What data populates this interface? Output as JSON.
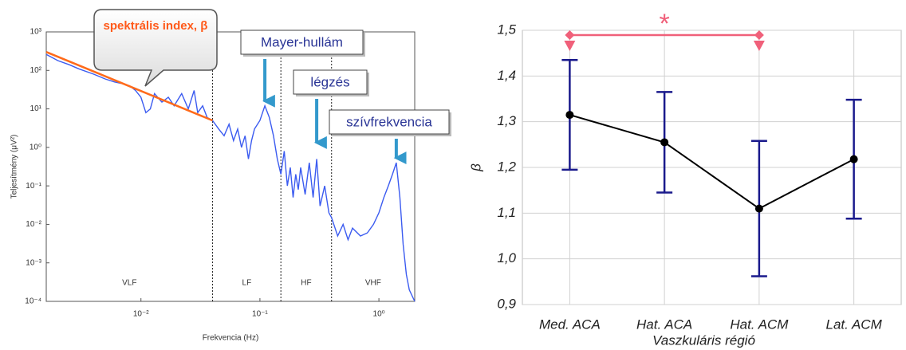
{
  "chart_data": [
    {
      "type": "line",
      "xlabel": "Frekvencia (Hz)",
      "ylabel": "Teljesítmény (μV²)",
      "xscale": "log",
      "yscale": "log",
      "xlim": [
        0.0016,
        2
      ],
      "ylim": [
        0.0001,
        1000
      ],
      "xticks": [
        {
          "value": 0.01,
          "label": "10⁻²"
        },
        {
          "value": 0.1,
          "label": "10⁻¹"
        },
        {
          "value": 1,
          "label": "10⁰"
        }
      ],
      "yticks": [
        {
          "value": 0.0001,
          "label": "10⁻⁴"
        },
        {
          "value": 0.001,
          "label": "10⁻³"
        },
        {
          "value": 0.01,
          "label": "10⁻²"
        },
        {
          "value": 0.1,
          "label": "10⁻¹"
        },
        {
          "value": 1,
          "label": "10⁰"
        },
        {
          "value": 10,
          "label": "10¹"
        },
        {
          "value": 100,
          "label": "10²"
        },
        {
          "value": 1000,
          "label": "10³"
        }
      ],
      "series": [
        {
          "color": "#3b5bf0",
          "x": [
            0.0016,
            0.002,
            0.0025,
            0.003,
            0.004,
            0.005,
            0.006,
            0.007,
            0.008,
            0.009,
            0.01,
            0.011,
            0.012,
            0.013,
            0.015,
            0.017,
            0.019,
            0.022,
            0.025,
            0.028,
            0.03,
            0.033,
            0.036,
            0.04,
            0.045,
            0.05,
            0.055,
            0.06,
            0.065,
            0.07,
            0.075,
            0.08,
            0.085,
            0.09,
            0.1,
            0.11,
            0.12,
            0.13,
            0.14,
            0.15,
            0.16,
            0.17,
            0.18,
            0.19,
            0.2,
            0.21,
            0.22,
            0.24,
            0.26,
            0.28,
            0.3,
            0.32,
            0.35,
            0.38,
            0.4,
            0.45,
            0.5,
            0.55,
            0.6,
            0.7,
            0.8,
            0.9,
            1.0,
            1.1,
            1.2,
            1.3,
            1.4,
            1.5,
            1.6,
            1.7,
            1.8,
            2.0
          ],
          "values": [
            260,
            180,
            140,
            110,
            80,
            60,
            50,
            45,
            40,
            30,
            20,
            8,
            10,
            25,
            15,
            20,
            12,
            25,
            10,
            30,
            8,
            12,
            6,
            5,
            3,
            2,
            4,
            1.5,
            3,
            1,
            2,
            0.5,
            1.5,
            3,
            5,
            12,
            6,
            2,
            0.5,
            0.2,
            0.8,
            0.1,
            0.3,
            0.05,
            0.2,
            0.08,
            0.3,
            0.06,
            0.4,
            0.05,
            0.5,
            0.03,
            0.1,
            0.02,
            0.015,
            0.005,
            0.01,
            0.004,
            0.008,
            0.005,
            0.006,
            0.01,
            0.02,
            0.05,
            0.1,
            0.2,
            0.4,
            0.05,
            0.003,
            0.0005,
            0.0002,
            0.0001
          ]
        },
        {
          "color": "#ff6a1a",
          "x": [
            0.0016,
            0.04
          ],
          "values": [
            300,
            5
          ]
        }
      ],
      "bands": {
        "edges": [
          0.04,
          0.15,
          0.4
        ],
        "labels": [
          "VLF",
          "LF",
          "HF",
          "VHF"
        ]
      },
      "callout": "spektrális index, β",
      "annotations": [
        {
          "text": "Mayer-hullám",
          "x": 0.11,
          "y": 12
        },
        {
          "text": "légzés",
          "x": 0.3,
          "y": 1
        },
        {
          "text": "szívfrekvencia",
          "x": 1.4,
          "y": 0.4
        }
      ]
    },
    {
      "type": "line",
      "xlabel": "Vaszkuláris régió",
      "ylabel": "β",
      "categories": [
        "Med. ACA",
        "Hat. ACA",
        "Hat. ACM",
        "Lat. ACM"
      ],
      "values": [
        1.315,
        1.255,
        1.11,
        1.218
      ],
      "errors": [
        0.12,
        0.11,
        0.148,
        0.13
      ],
      "color": "#000000",
      "error_color": "#1a1a8c",
      "ylim": [
        0.9,
        1.5
      ],
      "yticks": [
        {
          "value": 0.9,
          "label": "0,9"
        },
        {
          "value": 1.0,
          "label": "1,0"
        },
        {
          "value": 1.1,
          "label": "1,1"
        },
        {
          "value": 1.2,
          "label": "1,2"
        },
        {
          "value": 1.3,
          "label": "1,3"
        },
        {
          "value": 1.4,
          "label": "1,4"
        },
        {
          "value": 1.5,
          "label": "1,5"
        }
      ],
      "grid": true,
      "significance": {
        "label": "*",
        "between": [
          "Med. ACA",
          "Hat. ACM"
        ],
        "color": "#f0607a"
      }
    }
  ]
}
